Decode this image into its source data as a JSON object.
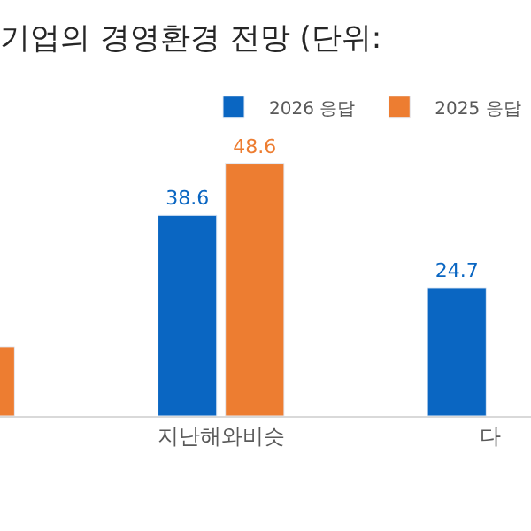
{
  "chart_data": {
    "type": "bar",
    "title": "기업의 경영환경 전망 (단위:",
    "categories": [
      null,
      "지난해와비슷",
      "다"
    ],
    "series": [
      {
        "name": "2026 응답",
        "color": "#0a66c2",
        "values": [
          null,
          38.6,
          24.7
        ],
        "value_labels": [
          null,
          "38.6",
          "24.7"
        ]
      },
      {
        "name": "2025 응답",
        "color": "#ed7d31",
        "values": [
          13.3,
          48.6,
          null
        ],
        "value_labels": [
          null,
          "48.6",
          null
        ]
      }
    ],
    "tick_labels": "x",
    "legend": "top right"
  }
}
